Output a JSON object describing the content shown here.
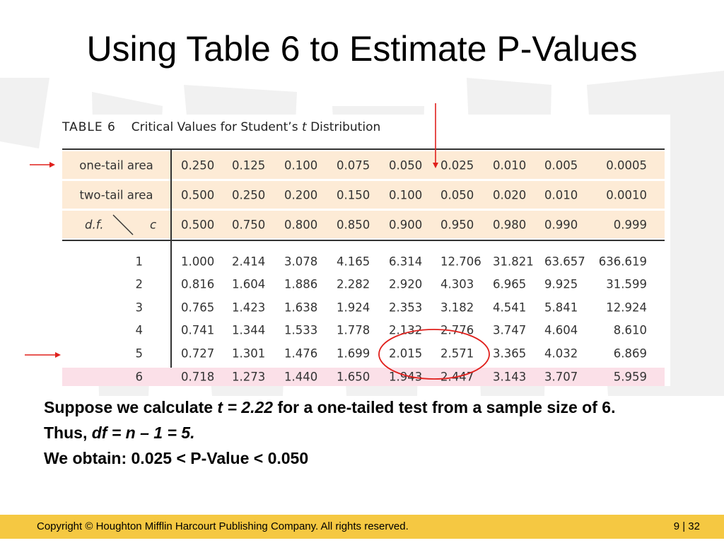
{
  "title": "Using Table 6 to Estimate P-Values",
  "table": {
    "label": "TABLE 6",
    "caption_pre": "Critical Values for Student’s",
    "caption_var": "t",
    "caption_post": "Distribution",
    "one_tail_label": "one-tail area",
    "two_tail_label": "two-tail area",
    "df_label": "d.f.",
    "c_label": "c",
    "one_tail": [
      "0.250",
      "0.125",
      "0.100",
      "0.075",
      "0.050",
      "0.025",
      "0.010",
      "0.005",
      "0.0005"
    ],
    "two_tail": [
      "0.500",
      "0.250",
      "0.200",
      "0.150",
      "0.100",
      "0.050",
      "0.020",
      "0.010",
      "0.0010"
    ],
    "c_values": [
      "0.500",
      "0.750",
      "0.800",
      "0.850",
      "0.900",
      "0.950",
      "0.980",
      "0.990",
      "0.999"
    ],
    "rows": [
      {
        "df": "1",
        "values": [
          "1.000",
          "2.414",
          "3.078",
          "4.165",
          "6.314",
          "12.706",
          "31.821",
          "63.657",
          "636.619"
        ]
      },
      {
        "df": "2",
        "values": [
          "0.816",
          "1.604",
          "1.886",
          "2.282",
          "2.920",
          "4.303",
          "6.965",
          "9.925",
          "31.599"
        ]
      },
      {
        "df": "3",
        "values": [
          "0.765",
          "1.423",
          "1.638",
          "1.924",
          "2.353",
          "3.182",
          "4.541",
          "5.841",
          "12.924"
        ]
      },
      {
        "df": "4",
        "values": [
          "0.741",
          "1.344",
          "1.533",
          "1.778",
          "2.132",
          "2.776",
          "3.747",
          "4.604",
          "8.610"
        ]
      },
      {
        "df": "5",
        "values": [
          "0.727",
          "1.301",
          "1.476",
          "1.699",
          "2.015",
          "2.571",
          "3.365",
          "4.032",
          "6.869"
        ]
      },
      {
        "df": "6",
        "values": [
          "0.718",
          "1.273",
          "1.440",
          "1.650",
          "1.943",
          "2.447",
          "3.143",
          "3.707",
          "5.959"
        ]
      }
    ]
  },
  "body": {
    "line1_pre": "Suppose we calculate ",
    "line1_var": "t = 2.22",
    "line1_post": " for a one-tailed test from a sample size of 6.",
    "line2_pre": "Thus, ",
    "line2_var": "df = n – 1 = 5.",
    "line3": "We obtain: 0.025 < P-Value < 0.050"
  },
  "footer": {
    "copyright": "Copyright © Houghton Mifflin Harcourt Publishing Company. All rights reserved.",
    "page": "9 | 32"
  },
  "colors": {
    "header_band": "#fdebd6",
    "highlight_row": "#fbe0e8",
    "annotation": "#e0201c",
    "footer_bar": "#f5c842"
  }
}
